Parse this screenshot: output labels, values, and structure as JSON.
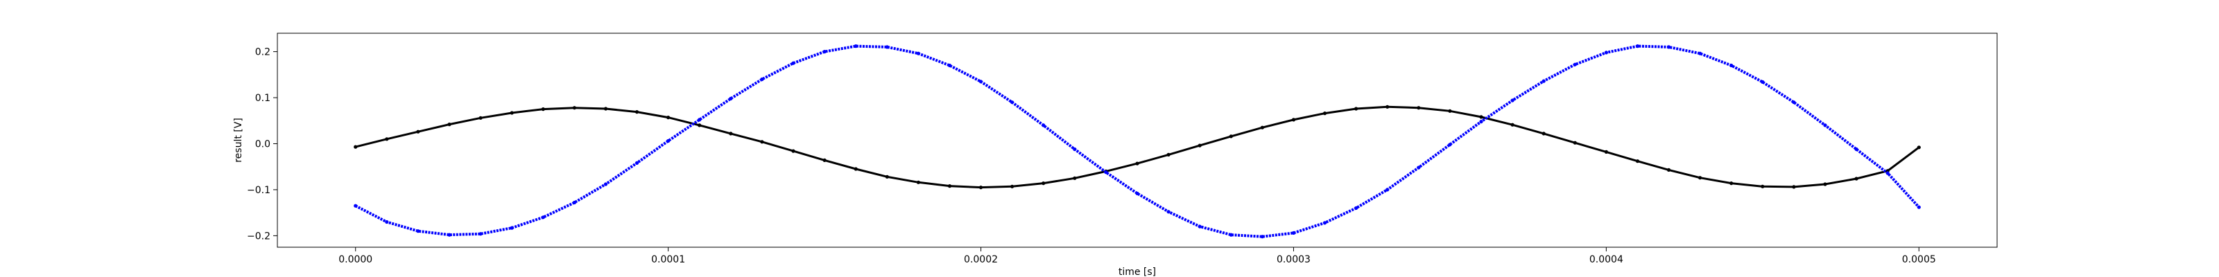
{
  "chart_data": {
    "type": "scatter",
    "title": "",
    "xlabel": "time [s]",
    "ylabel": "result [V]",
    "xlim": [
      -2.5e-05,
      0.000525
    ],
    "ylim": [
      -0.225,
      0.24
    ],
    "grid": false,
    "legend": "none",
    "x_ticks": [
      {
        "value": 0.0,
        "label": "0.0000"
      },
      {
        "value": 0.0001,
        "label": "0.0001"
      },
      {
        "value": 0.0002,
        "label": "0.0002"
      },
      {
        "value": 0.0003,
        "label": "0.0003"
      },
      {
        "value": 0.0004,
        "label": "0.0004"
      },
      {
        "value": 0.0005,
        "label": "0.0005"
      }
    ],
    "y_ticks": [
      {
        "value": -0.2,
        "label": "−0.2"
      },
      {
        "value": -0.1,
        "label": "−0.1"
      },
      {
        "value": 0.0,
        "label": "0.0"
      },
      {
        "value": 0.1,
        "label": "0.1"
      },
      {
        "value": 0.2,
        "label": "0.2"
      }
    ],
    "series": [
      {
        "color": "#000000",
        "x": [
          0.0,
          1e-05,
          2e-05,
          3e-05,
          4e-05,
          5e-05,
          6e-05,
          7e-05,
          8e-05,
          9e-05,
          0.0001,
          0.00011,
          0.00012,
          0.00013,
          0.00014,
          0.00015,
          0.00016,
          0.00017,
          0.00018,
          0.00019,
          0.0002,
          0.00021,
          0.00022,
          0.00023,
          0.00024,
          0.00025,
          0.00026,
          0.00027,
          0.00028,
          0.00029,
          0.0003,
          0.00031,
          0.00032,
          0.00033,
          0.00034,
          0.00035,
          0.00036,
          0.00037,
          0.00038,
          0.00039,
          0.0004,
          0.00041,
          0.00042,
          0.00043,
          0.00044,
          0.00045,
          0.00046,
          0.00047,
          0.00048,
          0.00049,
          0.0005
        ],
        "y": [
          -0.007,
          0.01,
          0.026,
          0.042,
          0.056,
          0.067,
          0.075,
          0.078,
          0.076,
          0.069,
          0.057,
          0.04,
          0.022,
          0.004,
          -0.016,
          -0.036,
          -0.055,
          -0.072,
          -0.084,
          -0.092,
          -0.095,
          -0.093,
          -0.086,
          -0.075,
          -0.06,
          -0.043,
          -0.024,
          -0.004,
          0.016,
          0.035,
          0.052,
          0.066,
          0.076,
          0.08,
          0.078,
          0.071,
          0.058,
          0.041,
          0.022,
          0.002,
          -0.018,
          -0.038,
          -0.057,
          -0.074,
          -0.086,
          -0.093,
          -0.094,
          -0.088,
          -0.076,
          -0.059,
          -0.008
        ]
      },
      {
        "color": "#0000ff",
        "x": [
          0.0,
          1e-05,
          2e-05,
          3e-05,
          4e-05,
          5e-05,
          6e-05,
          7e-05,
          8e-05,
          9e-05,
          0.0001,
          0.00011,
          0.00012,
          0.00013,
          0.00014,
          0.00015,
          0.00016,
          0.00017,
          0.00018,
          0.00019,
          0.0002,
          0.00021,
          0.00022,
          0.00023,
          0.00024,
          0.00025,
          0.00026,
          0.00027,
          0.00028,
          0.00029,
          0.0003,
          0.00031,
          0.00032,
          0.00033,
          0.00034,
          0.00035,
          0.00036,
          0.00037,
          0.00038,
          0.00039,
          0.0004,
          0.00041,
          0.00042,
          0.00043,
          0.00044,
          0.00045,
          0.00046,
          0.00047,
          0.00048,
          0.00049,
          0.0005
        ],
        "y": [
          -0.135,
          -0.17,
          -0.19,
          -0.198,
          -0.196,
          -0.183,
          -0.16,
          -0.128,
          -0.088,
          -0.042,
          0.006,
          0.052,
          0.098,
          0.14,
          0.175,
          0.2,
          0.212,
          0.21,
          0.196,
          0.17,
          0.135,
          0.09,
          0.04,
          -0.012,
          -0.062,
          -0.108,
          -0.148,
          -0.18,
          -0.198,
          -0.202,
          -0.194,
          -0.172,
          -0.14,
          -0.1,
          -0.052,
          -0.002,
          0.048,
          0.094,
          0.136,
          0.172,
          0.198,
          0.212,
          0.21,
          0.196,
          0.17,
          0.134,
          0.09,
          0.04,
          -0.012,
          -0.064,
          -0.138
        ]
      }
    ]
  }
}
